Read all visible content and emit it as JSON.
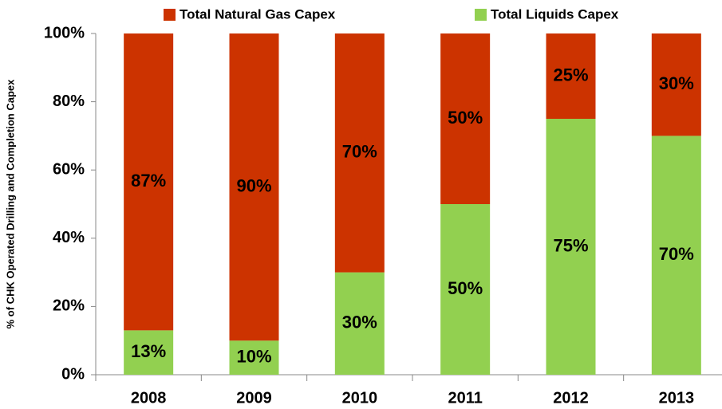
{
  "chart_data": {
    "type": "stacked_bar",
    "y_label": "% of CHK Operated Drilling and Completion Capex",
    "categories": [
      "2008",
      "2009",
      "2010",
      "2011",
      "2012",
      "2013"
    ],
    "series": [
      {
        "name": "Total Natural Gas Capex",
        "color": "#cc3300",
        "values": [
          87,
          90,
          70,
          50,
          25,
          30
        ],
        "value_labels": [
          "87%",
          "90%",
          "70%",
          "50%",
          "25%",
          "30%"
        ]
      },
      {
        "name": "Total Liquids Capex",
        "color": "#92d050",
        "values": [
          13,
          10,
          30,
          50,
          75,
          70
        ],
        "value_labels": [
          "13%",
          "10%",
          "30%",
          "50%",
          "75%",
          "70%"
        ]
      }
    ],
    "ylim": [
      0,
      100
    ],
    "yticks": [
      {
        "value": 0,
        "label": "0%"
      },
      {
        "value": 20,
        "label": "20%"
      },
      {
        "value": 40,
        "label": "40%"
      },
      {
        "value": 60,
        "label": "60%"
      },
      {
        "value": 80,
        "label": "80%"
      },
      {
        "value": 100,
        "label": "100%"
      }
    ]
  }
}
